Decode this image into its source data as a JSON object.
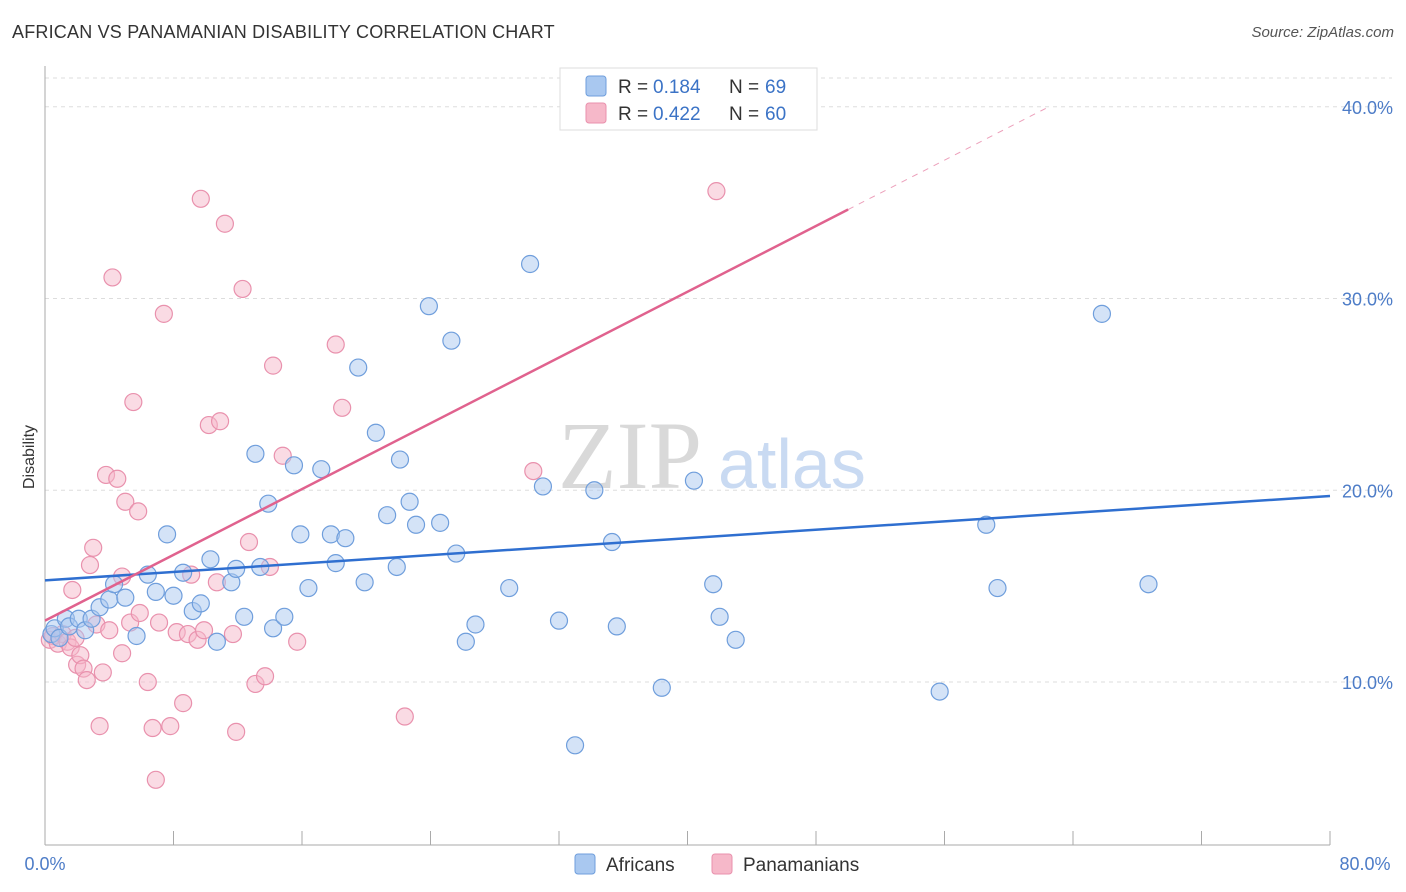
{
  "title": "AFRICAN VS PANAMANIAN DISABILITY CORRELATION CHART",
  "source": "Source: ZipAtlas.com",
  "watermark": {
    "zip": "ZIP",
    "atlas": "atlas"
  },
  "colors": {
    "blue_fill": "#a9c8f0",
    "blue_stroke": "#6f9edc",
    "blue_line": "#2f6fd0",
    "pink_fill": "#f6b8c9",
    "pink_stroke": "#e991ad",
    "pink_line": "#e0628e",
    "axis_label": "#4d7cc7",
    "grid": "#dddddd"
  },
  "legend_top": [
    {
      "r_label": "R =",
      "r_value": "0.184",
      "n_label": "N =",
      "n_value": "69",
      "color": "blue"
    },
    {
      "r_label": "R =",
      "r_value": "0.422",
      "n_label": "N =",
      "n_value": "60",
      "color": "pink"
    }
  ],
  "legend_bottom": [
    "Africans",
    "Panamanians"
  ],
  "chart_data": {
    "type": "scatter",
    "title": "AFRICAN VS PANAMANIAN DISABILITY CORRELATION CHART",
    "xlabel": "",
    "ylabel": "Disability",
    "xlim": [
      0,
      80
    ],
    "ylim": [
      1.5,
      41.5
    ],
    "x_tick_labels": [
      "0.0%",
      "80.0%"
    ],
    "y_ticks": [
      10,
      20,
      30,
      40
    ],
    "y_tick_labels": [
      "10.0%",
      "20.0%",
      "30.0%",
      "40.0%"
    ],
    "grid": true,
    "legend_position": "top-center",
    "series": [
      {
        "name": "Africans",
        "color": "blue",
        "trend": {
          "x0": 0,
          "y0": 15.3,
          "x1": 80,
          "y1": 19.7,
          "dashed_from": null
        },
        "points": [
          [
            0.4,
            12.5
          ],
          [
            0.6,
            12.8
          ],
          [
            0.9,
            12.3
          ],
          [
            1.3,
            13.3
          ],
          [
            1.5,
            12.9
          ],
          [
            2.1,
            13.3
          ],
          [
            2.5,
            12.7
          ],
          [
            2.9,
            13.3
          ],
          [
            3.4,
            13.9
          ],
          [
            4.0,
            14.3
          ],
          [
            4.3,
            15.1
          ],
          [
            5.0,
            14.4
          ],
          [
            5.7,
            12.4
          ],
          [
            6.4,
            15.6
          ],
          [
            6.9,
            14.7
          ],
          [
            7.6,
            17.7
          ],
          [
            8.0,
            14.5
          ],
          [
            8.6,
            15.7
          ],
          [
            9.2,
            13.7
          ],
          [
            9.7,
            14.1
          ],
          [
            10.3,
            16.4
          ],
          [
            10.7,
            12.1
          ],
          [
            11.6,
            15.2
          ],
          [
            11.9,
            15.9
          ],
          [
            12.4,
            13.4
          ],
          [
            13.1,
            21.9
          ],
          [
            13.4,
            16.0
          ],
          [
            13.9,
            19.3
          ],
          [
            14.2,
            12.8
          ],
          [
            14.9,
            13.4
          ],
          [
            15.5,
            21.3
          ],
          [
            15.9,
            17.7
          ],
          [
            16.4,
            14.9
          ],
          [
            17.2,
            21.1
          ],
          [
            17.8,
            17.7
          ],
          [
            18.1,
            16.2
          ],
          [
            18.7,
            17.5
          ],
          [
            19.5,
            26.4
          ],
          [
            19.9,
            15.2
          ],
          [
            20.6,
            23.0
          ],
          [
            21.3,
            18.7
          ],
          [
            21.9,
            16.0
          ],
          [
            22.1,
            21.6
          ],
          [
            22.7,
            19.4
          ],
          [
            23.1,
            18.2
          ],
          [
            23.9,
            29.6
          ],
          [
            24.6,
            18.3
          ],
          [
            25.3,
            27.8
          ],
          [
            25.6,
            16.7
          ],
          [
            26.2,
            12.1
          ],
          [
            26.8,
            13.0
          ],
          [
            28.9,
            14.9
          ],
          [
            30.2,
            31.8
          ],
          [
            31.0,
            20.2
          ],
          [
            32.0,
            13.2
          ],
          [
            33.0,
            6.7
          ],
          [
            34.2,
            20.0
          ],
          [
            35.3,
            17.3
          ],
          [
            35.6,
            12.9
          ],
          [
            38.4,
            9.7
          ],
          [
            40.4,
            20.5
          ],
          [
            41.6,
            15.1
          ],
          [
            42.0,
            13.4
          ],
          [
            43.0,
            12.2
          ],
          [
            55.7,
            9.5
          ],
          [
            58.6,
            18.2
          ],
          [
            59.3,
            14.9
          ],
          [
            65.8,
            29.2
          ],
          [
            68.7,
            15.1
          ]
        ]
      },
      {
        "name": "Panamanians",
        "color": "pink",
        "trend": {
          "x0": 0,
          "y0": 13.2,
          "x1": 62.5,
          "y1": 40.0,
          "dashed_from": 50
        },
        "points": [
          [
            0.3,
            12.2
          ],
          [
            0.5,
            12.4
          ],
          [
            0.8,
            12.0
          ],
          [
            1.1,
            12.5
          ],
          [
            1.4,
            12.1
          ],
          [
            1.6,
            11.8
          ],
          [
            1.7,
            14.8
          ],
          [
            1.9,
            12.3
          ],
          [
            2.0,
            10.9
          ],
          [
            2.2,
            11.4
          ],
          [
            2.4,
            10.7
          ],
          [
            2.6,
            10.1
          ],
          [
            2.8,
            16.1
          ],
          [
            3.0,
            17.0
          ],
          [
            3.2,
            13.0
          ],
          [
            3.4,
            7.7
          ],
          [
            3.6,
            10.5
          ],
          [
            3.8,
            20.8
          ],
          [
            4.0,
            12.7
          ],
          [
            4.2,
            31.1
          ],
          [
            4.5,
            20.6
          ],
          [
            4.8,
            11.5
          ],
          [
            5.0,
            19.4
          ],
          [
            5.3,
            13.1
          ],
          [
            5.5,
            24.6
          ],
          [
            5.8,
            18.9
          ],
          [
            5.9,
            13.6
          ],
          [
            6.4,
            10.0
          ],
          [
            6.7,
            7.6
          ],
          [
            6.9,
            4.9
          ],
          [
            7.1,
            13.1
          ],
          [
            7.4,
            29.2
          ],
          [
            7.8,
            7.7
          ],
          [
            8.2,
            12.6
          ],
          [
            8.6,
            8.9
          ],
          [
            8.9,
            12.5
          ],
          [
            9.1,
            15.6
          ],
          [
            9.5,
            12.2
          ],
          [
            9.7,
            35.2
          ],
          [
            9.9,
            12.7
          ],
          [
            10.2,
            23.4
          ],
          [
            10.7,
            15.2
          ],
          [
            10.9,
            23.6
          ],
          [
            11.2,
            33.9
          ],
          [
            11.7,
            12.5
          ],
          [
            11.9,
            7.4
          ],
          [
            12.3,
            30.5
          ],
          [
            12.7,
            17.3
          ],
          [
            13.1,
            9.9
          ],
          [
            13.7,
            10.3
          ],
          [
            14.2,
            26.5
          ],
          [
            14.8,
            21.8
          ],
          [
            15.7,
            12.1
          ],
          [
            18.5,
            24.3
          ],
          [
            18.1,
            27.6
          ],
          [
            22.4,
            8.2
          ],
          [
            30.4,
            21.0
          ],
          [
            41.8,
            35.6
          ],
          [
            4.8,
            15.5
          ],
          [
            14.0,
            16.0
          ]
        ]
      }
    ]
  }
}
